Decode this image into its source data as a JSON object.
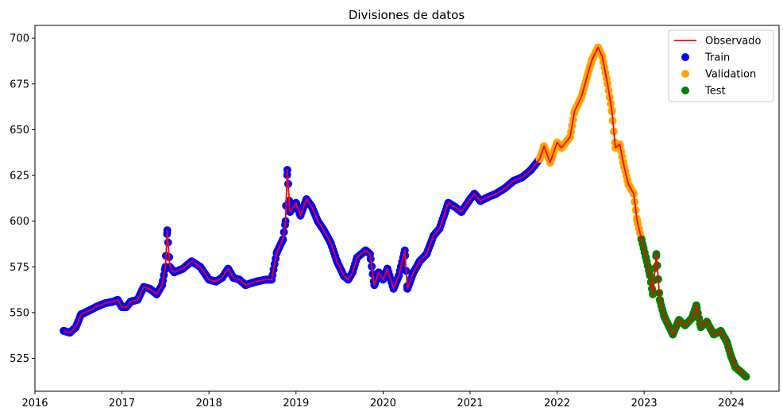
{
  "chart_data": {
    "type": "line",
    "title": "Divisiones de datos",
    "xlabel": "",
    "ylabel": "",
    "xlim": [
      2016.0,
      2024.55
    ],
    "ylim": [
      507,
      707
    ],
    "x_ticks": [
      2016,
      2017,
      2018,
      2019,
      2020,
      2021,
      2022,
      2023,
      2024
    ],
    "x_tick_labels": [
      "2016",
      "2017",
      "2018",
      "2019",
      "2020",
      "2021",
      "2022",
      "2023",
      "2024"
    ],
    "y_ticks": [
      525,
      550,
      575,
      600,
      625,
      650,
      675,
      700
    ],
    "y_tick_labels": [
      "525",
      "550",
      "575",
      "600",
      "625",
      "650",
      "675",
      "700"
    ],
    "grid": false,
    "legend_position": "top-right",
    "legend": [
      "Observado",
      "Train",
      "Validation",
      "Test"
    ],
    "series": [
      {
        "name": "Observado",
        "kind": "line",
        "color": "#ff0000",
        "points": [
          [
            2016.33,
            540
          ],
          [
            2016.4,
            539
          ],
          [
            2016.47,
            542
          ],
          [
            2016.53,
            549
          ],
          [
            2016.62,
            551
          ],
          [
            2016.7,
            553
          ],
          [
            2016.8,
            555
          ],
          [
            2016.9,
            556
          ],
          [
            2016.95,
            557
          ],
          [
            2017.0,
            553
          ],
          [
            2017.05,
            553
          ],
          [
            2017.1,
            556
          ],
          [
            2017.18,
            557
          ],
          [
            2017.25,
            564
          ],
          [
            2017.32,
            563
          ],
          [
            2017.4,
            560
          ],
          [
            2017.46,
            565
          ],
          [
            2017.5,
            575
          ],
          [
            2017.52,
            595
          ],
          [
            2017.55,
            575
          ],
          [
            2017.6,
            572
          ],
          [
            2017.7,
            574
          ],
          [
            2017.8,
            578
          ],
          [
            2017.9,
            575
          ],
          [
            2018.0,
            568
          ],
          [
            2018.08,
            567
          ],
          [
            2018.15,
            569
          ],
          [
            2018.22,
            574
          ],
          [
            2018.28,
            569
          ],
          [
            2018.35,
            568
          ],
          [
            2018.42,
            565
          ],
          [
            2018.48,
            566
          ],
          [
            2018.55,
            567
          ],
          [
            2018.65,
            568
          ],
          [
            2018.72,
            568
          ],
          [
            2018.78,
            583
          ],
          [
            2018.85,
            590
          ],
          [
            2018.88,
            600
          ],
          [
            2018.9,
            628
          ],
          [
            2018.93,
            605
          ],
          [
            2019.0,
            610
          ],
          [
            2019.05,
            603
          ],
          [
            2019.12,
            612
          ],
          [
            2019.18,
            608
          ],
          [
            2019.25,
            600
          ],
          [
            2019.32,
            595
          ],
          [
            2019.4,
            588
          ],
          [
            2019.47,
            578
          ],
          [
            2019.55,
            570
          ],
          [
            2019.6,
            568
          ],
          [
            2019.65,
            572
          ],
          [
            2019.7,
            580
          ],
          [
            2019.8,
            584
          ],
          [
            2019.85,
            582
          ],
          [
            2019.9,
            565
          ],
          [
            2019.95,
            572
          ],
          [
            2020.0,
            568
          ],
          [
            2020.05,
            574
          ],
          [
            2020.12,
            563
          ],
          [
            2020.18,
            570
          ],
          [
            2020.25,
            584
          ],
          [
            2020.28,
            563
          ],
          [
            2020.35,
            572
          ],
          [
            2020.42,
            578
          ],
          [
            2020.5,
            582
          ],
          [
            2020.58,
            592
          ],
          [
            2020.65,
            596
          ],
          [
            2020.75,
            610
          ],
          [
            2020.82,
            608
          ],
          [
            2020.9,
            605
          ],
          [
            2021.0,
            612
          ],
          [
            2021.05,
            615
          ],
          [
            2021.12,
            611
          ],
          [
            2021.2,
            613
          ],
          [
            2021.3,
            615
          ],
          [
            2021.4,
            618
          ],
          [
            2021.5,
            622
          ],
          [
            2021.6,
            624
          ],
          [
            2021.7,
            628
          ],
          [
            2021.8,
            634
          ],
          [
            2021.85,
            641
          ],
          [
            2021.92,
            632
          ],
          [
            2022.0,
            643
          ],
          [
            2022.05,
            640
          ],
          [
            2022.1,
            643
          ],
          [
            2022.15,
            646
          ],
          [
            2022.2,
            660
          ],
          [
            2022.28,
            668
          ],
          [
            2022.35,
            680
          ],
          [
            2022.4,
            688
          ],
          [
            2022.47,
            695
          ],
          [
            2022.52,
            690
          ],
          [
            2022.58,
            675
          ],
          [
            2022.63,
            660
          ],
          [
            2022.67,
            640
          ],
          [
            2022.72,
            642
          ],
          [
            2022.77,
            630
          ],
          [
            2022.82,
            620
          ],
          [
            2022.88,
            615
          ],
          [
            2022.92,
            600
          ],
          [
            2022.97,
            590
          ],
          [
            2023.02,
            580
          ],
          [
            2023.06,
            572
          ],
          [
            2023.1,
            560
          ],
          [
            2023.14,
            582
          ],
          [
            2023.18,
            557
          ],
          [
            2023.23,
            548
          ],
          [
            2023.28,
            543
          ],
          [
            2023.33,
            538
          ],
          [
            2023.4,
            546
          ],
          [
            2023.47,
            543
          ],
          [
            2023.55,
            547
          ],
          [
            2023.6,
            554
          ],
          [
            2023.65,
            542
          ],
          [
            2023.72,
            545
          ],
          [
            2023.8,
            538
          ],
          [
            2023.88,
            540
          ],
          [
            2023.95,
            534
          ],
          [
            2024.0,
            526
          ],
          [
            2024.05,
            520
          ],
          [
            2024.1,
            518
          ],
          [
            2024.17,
            515
          ]
        ]
      },
      {
        "name": "Train",
        "kind": "scatter",
        "color": "#0000ff",
        "x_range": [
          2016.33,
          2021.8
        ]
      },
      {
        "name": "Validation",
        "kind": "scatter",
        "color": "#ffa500",
        "x_range": [
          2021.8,
          2022.97
        ]
      },
      {
        "name": "Test",
        "kind": "scatter",
        "color": "#008000",
        "x_range": [
          2022.97,
          2024.17
        ]
      }
    ]
  }
}
